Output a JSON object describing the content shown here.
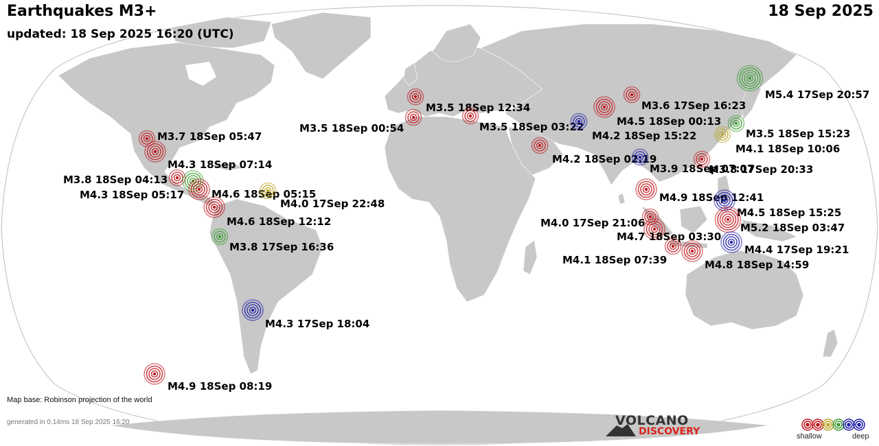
{
  "header": {
    "title": "Earthquakes M3+",
    "subtitle": "updated: 18 Sep 2025 16:20 (UTC)",
    "date": "18 Sep 2025"
  },
  "footer": {
    "map_base": "Map base: Robinson projection of the world",
    "generated": "generated in 0.14ms 18 Sep 2025 16:20"
  },
  "logo": {
    "line1": "VOLCANO",
    "line2": "DISCOVERY"
  },
  "legend": {
    "shallow": "shallow",
    "deep": "deep",
    "colors": [
      "#c0171d",
      "#c0171d",
      "#b8a321",
      "#3a9a30",
      "#1f1fa8",
      "#1f1fa8"
    ]
  },
  "depth_colors": {
    "red": "#c0171d",
    "yellow": "#b8a321",
    "green": "#3a9a30",
    "blue": "#1f1fa8"
  },
  "colors": {
    "land": "#c8c8c8",
    "ocean": "#ffffff",
    "border": "#ffffff",
    "outline": "#bbbbbb"
  },
  "quakes": [
    {
      "label": "M5.4 17Sep 20:57",
      "color": "green"
    },
    {
      "label": "M3.6 17Sep 16:23",
      "color": "red"
    },
    {
      "label": "M4.5 18Sep 00:13",
      "color": "red"
    },
    {
      "label": "M3.5 18Sep 12:34",
      "color": "red"
    },
    {
      "label": "M3.5 18Sep 00:54",
      "color": "red"
    },
    {
      "label": "M3.5 18Sep 03:22",
      "color": "red"
    },
    {
      "label": "M4.2 18Sep 15:22",
      "color": "blue"
    },
    {
      "label": "M3.5 18Sep 15:23",
      "color": "green"
    },
    {
      "label": "M4.1 18Sep 10:06",
      "color": "yellow"
    },
    {
      "label": "M4.2 18Sep 02:19",
      "color": "red"
    },
    {
      "label": "M3.9 18Sep 07:07",
      "color": "blue"
    },
    {
      "label": "M3.8 17Sep 20:33",
      "color": "red"
    },
    {
      "label": "M3.7 18Sep 05:47",
      "color": "red"
    },
    {
      "label": "M4.3 18Sep 07:14",
      "color": "red"
    },
    {
      "label": "M3.8 18Sep 04:13",
      "color": "red"
    },
    {
      "label": "M4.3 18Sep 05:17",
      "color": "green"
    },
    {
      "label": "M4.6 18Sep 05:15",
      "color": "red"
    },
    {
      "label": "M4.0 17Sep 22:48",
      "color": "yellow"
    },
    {
      "label": "M4.6 18Sep 12:12",
      "color": "red"
    },
    {
      "label": "M3.8 17Sep 16:36",
      "color": "green"
    },
    {
      "label": "M4.9 18Sep 12:41",
      "color": "red"
    },
    {
      "label": "M4.5 18Sep 15:25",
      "color": "blue"
    },
    {
      "label": "M4.0 17Sep 21:06",
      "color": "red"
    },
    {
      "label": "M5.2 18Sep 03:47",
      "color": "red"
    },
    {
      "label": "M4.7 18Sep 03:30",
      "color": "red"
    },
    {
      "label": "M4.4 17Sep 19:21",
      "color": "blue"
    },
    {
      "label": "M4.1 18Sep 07:39",
      "color": "red"
    },
    {
      "label": "M4.8 18Sep 14:59",
      "color": "red"
    },
    {
      "label": "M4.3 17Sep 18:04",
      "color": "blue"
    },
    {
      "label": "M4.9 18Sep 08:19",
      "color": "red"
    }
  ]
}
